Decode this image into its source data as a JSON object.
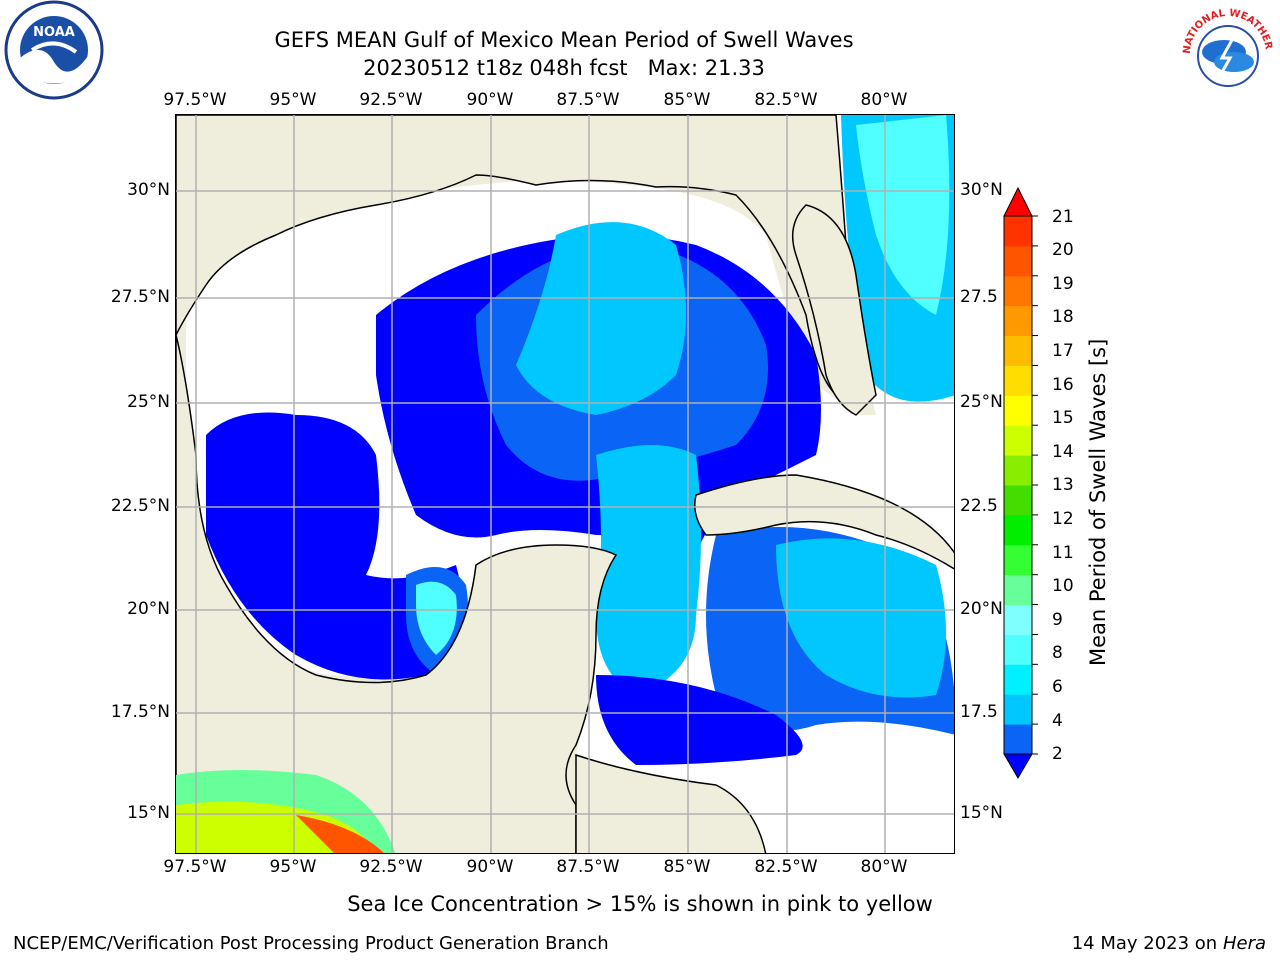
{
  "header": {
    "title_line1": "GEFS MEAN Gulf of Mexico Mean Period of Swell Waves",
    "title_line2": "20230512 t18z 048h fcst   Max: 21.33"
  },
  "map": {
    "lon_ticks": [
      "97.5°W",
      "95°W",
      "92.5°W",
      "90°W",
      "87.5°W",
      "85°W",
      "82.5°W",
      "80°W"
    ],
    "lat_ticks_left": [
      "30°N",
      "27.5°N",
      "25°N",
      "22.5°N",
      "20°N",
      "17.5°N",
      "15°N"
    ],
    "lat_ticks_right": [
      "30°N",
      "27.5",
      "25°N",
      "22.5",
      "20°N",
      "17.5",
      "15°N"
    ],
    "colors": {
      "land": "#efeddc",
      "no_data": "#ffffff",
      "grid": "#b0b0b0",
      "coast": "#000000"
    }
  },
  "colorbar": {
    "label": "Mean Period of Swell Waves [s]",
    "ticks": [
      "2",
      "4",
      "6",
      "8",
      "9",
      "10",
      "11",
      "12",
      "13",
      "14",
      "15",
      "16",
      "17",
      "18",
      "19",
      "20",
      "21"
    ],
    "colors": [
      "#0000ff",
      "#0a64f5",
      "#00c8ff",
      "#00f0ff",
      "#50ffff",
      "#80ffff",
      "#66ff99",
      "#33ff33",
      "#00ee00",
      "#44dd00",
      "#88ee00",
      "#ccff00",
      "#ffff00",
      "#ffdd00",
      "#ffbb00",
      "#ff9900",
      "#ff7700",
      "#ff5500",
      "#ff3300",
      "#ff0000"
    ]
  },
  "footer": {
    "note": "Sea Ice Concentration > 15% is shown in pink to yellow",
    "credit": "NCEP/EMC/Verification Post Processing Product Generation Branch",
    "date": "14 May 2023 on",
    "host": "Hera"
  },
  "logos": {
    "left": "noaa-logo",
    "right": "national-weather-service-logo",
    "right_text": "NATIONAL WEATHER SERVICE"
  }
}
